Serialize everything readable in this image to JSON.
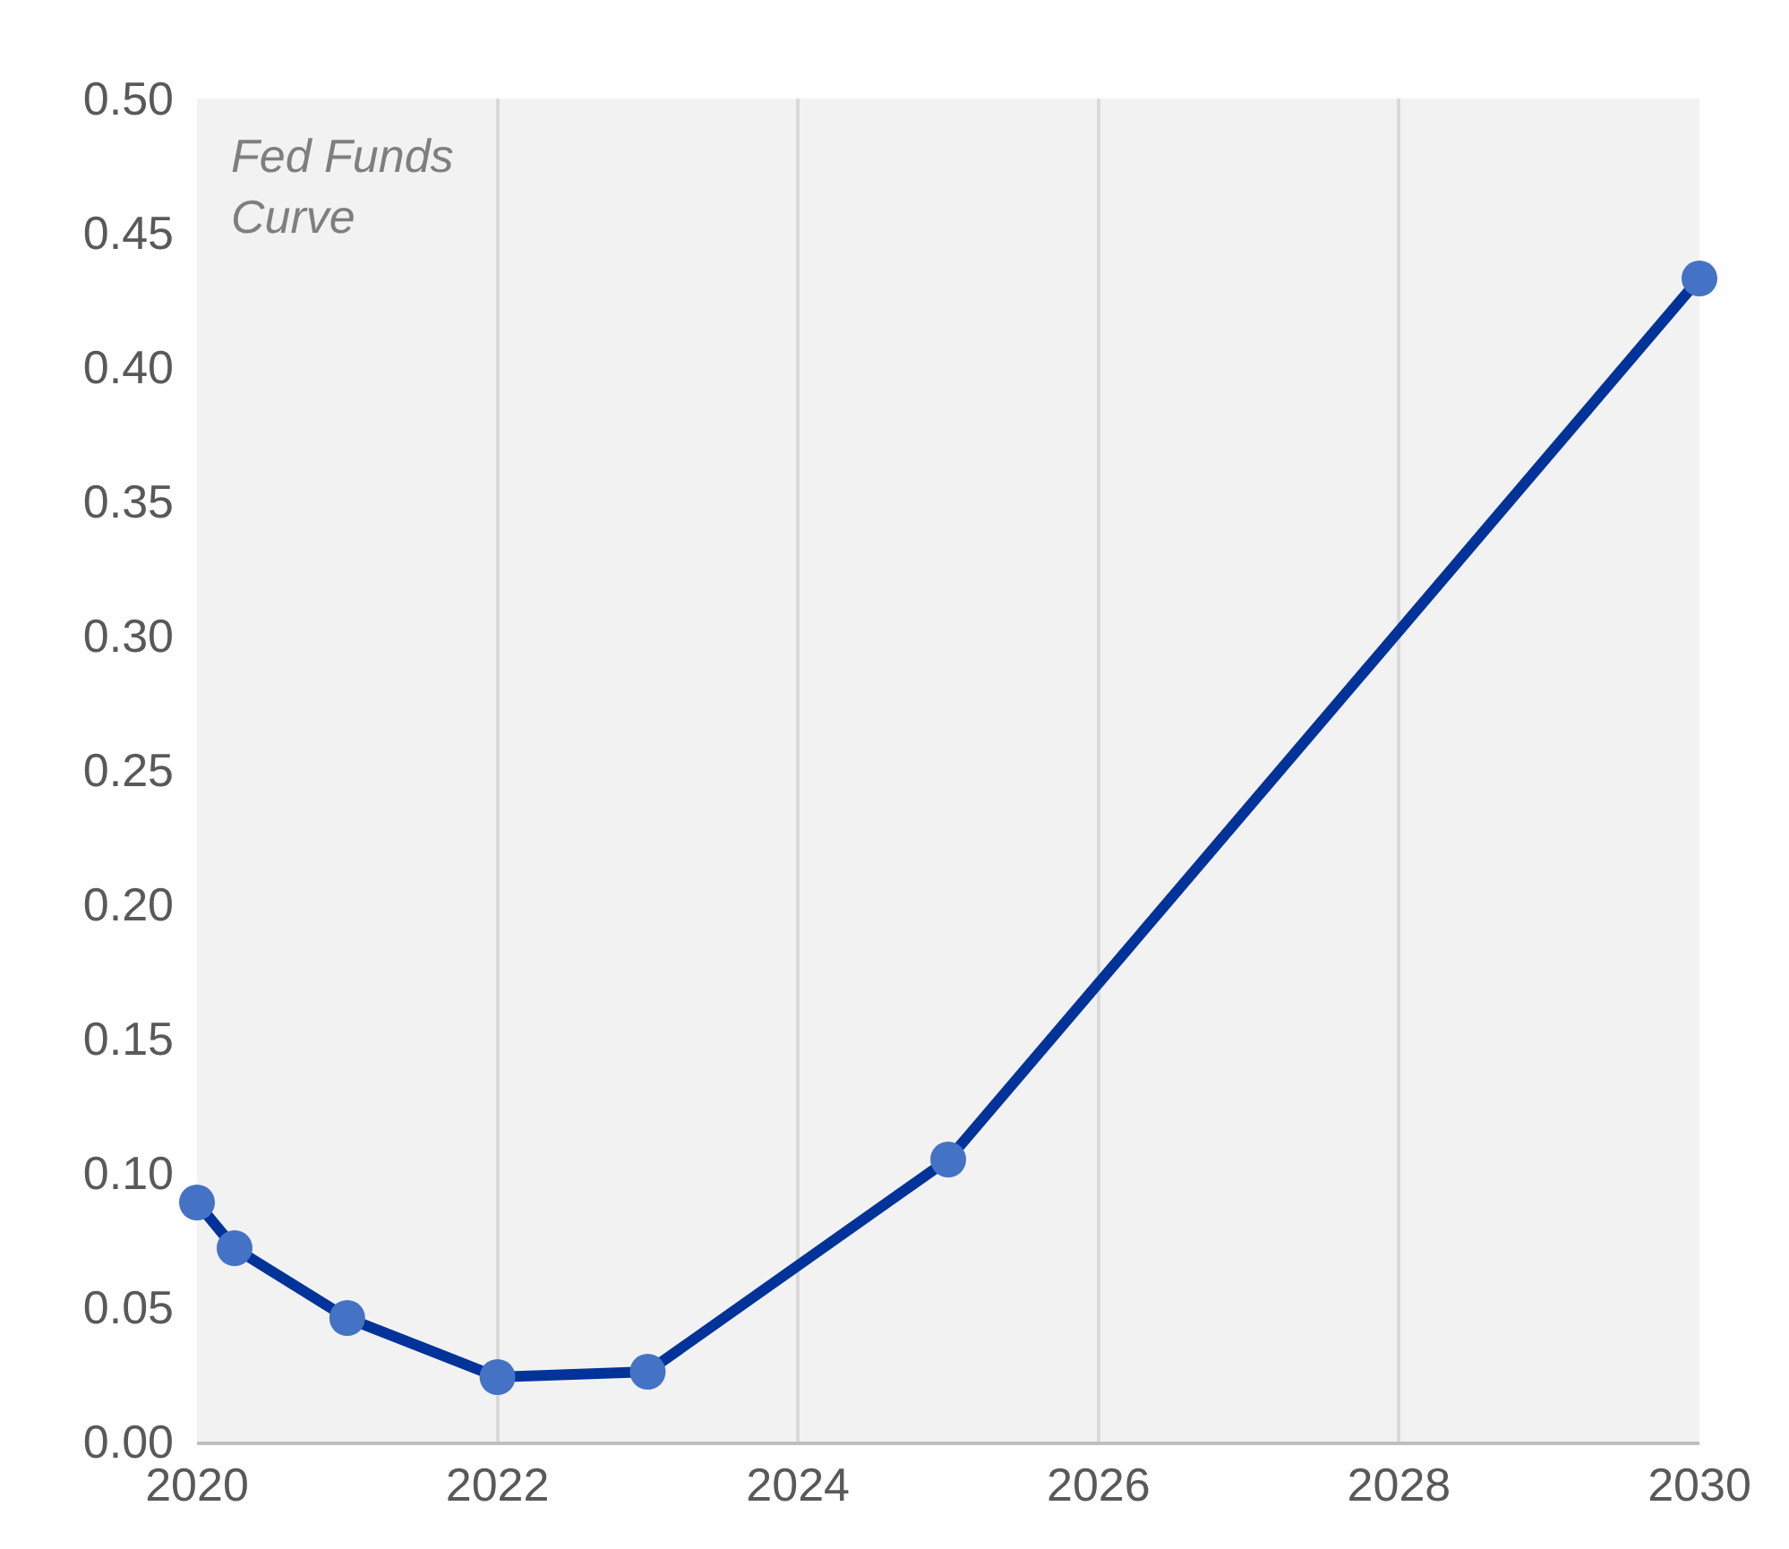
{
  "chart_data": {
    "type": "line",
    "annotations": [
      "Fed Funds\nCurve"
    ],
    "x": [
      2020,
      2020.25,
      2021,
      2022,
      2023,
      2025,
      2030
    ],
    "series": [
      {
        "color": "#003399",
        "colors": [
          "#4472c4",
          "#4472c4",
          "#4472c4",
          "#4472c4",
          "#4472c4",
          "#4472c4",
          "#4472c4"
        ],
        "values": [
          0.089,
          0.072,
          0.046,
          0.024,
          0.026,
          0.105,
          0.433
        ]
      }
    ],
    "xlim": [
      2020,
      2030
    ],
    "xticks": [
      2020,
      2022,
      2024,
      2026,
      2028,
      2030
    ],
    "ylim": [
      0,
      0.5
    ],
    "yticks": [
      {
        "value": 0,
        "label": "0.00"
      },
      {
        "value": 0.05,
        "label": "0.05"
      },
      {
        "value": 0.1,
        "label": "0.10"
      },
      {
        "value": 0.15,
        "label": "0.15"
      },
      {
        "value": 0.2,
        "label": "0.20"
      },
      {
        "value": 0.25,
        "label": "0.25"
      },
      {
        "value": 0.3,
        "label": "0.30"
      },
      {
        "value": 0.35,
        "label": "0.35"
      },
      {
        "value": 0.4,
        "label": "0.40"
      },
      {
        "value": 0.45,
        "label": "0.45"
      },
      {
        "value": 0.5,
        "label": "0.50"
      }
    ],
    "grid": "x",
    "marker": "circle",
    "line_style": "solid"
  }
}
